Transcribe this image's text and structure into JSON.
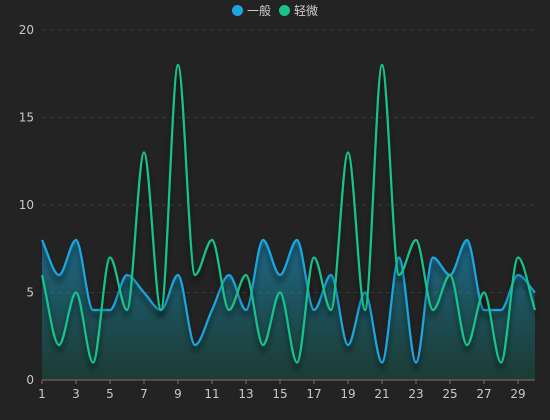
{
  "chart_data": {
    "type": "line",
    "x": [
      1,
      2,
      3,
      4,
      5,
      6,
      7,
      8,
      9,
      10,
      11,
      12,
      13,
      14,
      15,
      16,
      17,
      18,
      19,
      20,
      21,
      22,
      23,
      24,
      25,
      26,
      27,
      28,
      29,
      30
    ],
    "x_tick_labels": [
      "1",
      "3",
      "5",
      "7",
      "9",
      "11",
      "13",
      "15",
      "17",
      "19",
      "21",
      "23",
      "25",
      "27",
      "29"
    ],
    "y_ticks": [
      "0",
      "5",
      "10",
      "15",
      "20"
    ],
    "ylim": [
      0,
      20
    ],
    "grid": true,
    "legend_position": "top-center",
    "series": [
      {
        "name": "一般",
        "color": "#1aa6e0",
        "area": true,
        "values": [
          8,
          6,
          8,
          4,
          4,
          6,
          5,
          4,
          6,
          2,
          4,
          6,
          4,
          8,
          6,
          8,
          4,
          6,
          2,
          5,
          1,
          7,
          1,
          7,
          6,
          8,
          4,
          4,
          6,
          5
        ]
      },
      {
        "name": "轻微",
        "color": "#16c48a",
        "area": false,
        "values": [
          6,
          2,
          5,
          1,
          7,
          4,
          13,
          4,
          18,
          6,
          8,
          4,
          6,
          2,
          5,
          1,
          7,
          4,
          13,
          4,
          18,
          6,
          8,
          4,
          6,
          2,
          5,
          1,
          7,
          4
        ]
      }
    ]
  },
  "colors": {
    "background": "#232323",
    "grid": "#3a3a3a",
    "axis": "#8a6a6a"
  }
}
